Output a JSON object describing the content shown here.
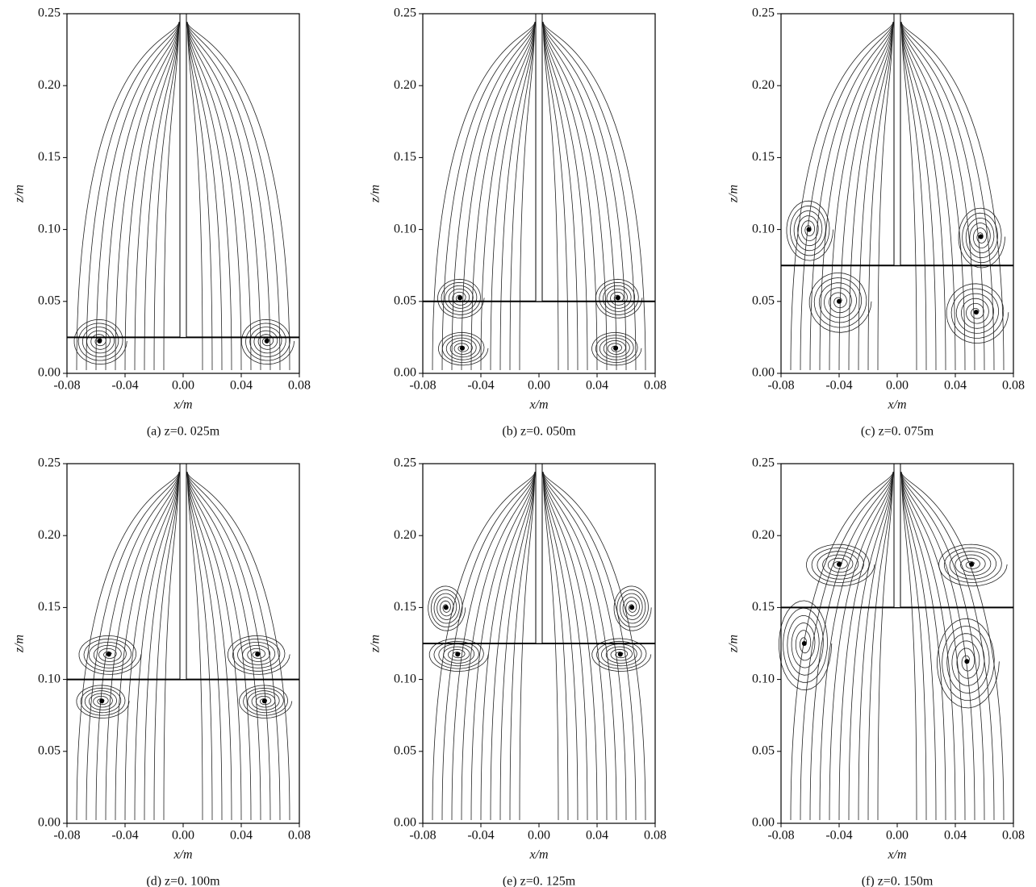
{
  "chart_data": [
    {
      "type": "streamline",
      "caption": "(a) z=0. 025m",
      "xlabel": "x/m",
      "ylabel": "z/m",
      "xlim": [
        -0.08,
        0.08
      ],
      "ylim": [
        0,
        0.25
      ],
      "xticks": [
        -0.08,
        -0.04,
        {
          "value": 0,
          "label": "0.00"
        },
        0.04,
        0.08
      ],
      "yticks": [
        {
          "value": 0,
          "label": "0.00"
        },
        0.05,
        {
          "value": 0.1,
          "label": "0.10"
        },
        0.15,
        {
          "value": 0.2,
          "label": "0.20"
        },
        0.25
      ]
    },
    {
      "type": "streamline",
      "caption": "(b) z=0. 050m",
      "xlabel": "x/m",
      "ylabel": "z/m",
      "xlim": [
        -0.08,
        0.08
      ],
      "ylim": [
        0,
        0.25
      ],
      "xticks": [
        -0.08,
        -0.04,
        {
          "value": 0,
          "label": "0.00"
        },
        0.04,
        0.08
      ],
      "yticks": [
        {
          "value": 0,
          "label": "0.00"
        },
        0.05,
        {
          "value": 0.1,
          "label": "0.10"
        },
        0.15,
        {
          "value": 0.2,
          "label": "0.20"
        },
        0.25
      ]
    },
    {
      "type": "streamline",
      "caption": "(c) z=0. 075m",
      "xlabel": "x/m",
      "ylabel": "z/m",
      "xlim": [
        -0.08,
        0.08
      ],
      "ylim": [
        0,
        0.25
      ],
      "xticks": [
        -0.08,
        -0.04,
        {
          "value": 0,
          "label": "0.00"
        },
        0.04,
        0.08
      ],
      "yticks": [
        {
          "value": 0,
          "label": "0.00"
        },
        0.05,
        {
          "value": 0.1,
          "label": "0.10"
        },
        0.15,
        {
          "value": 0.2,
          "label": "0.20"
        },
        0.25
      ]
    },
    {
      "type": "streamline",
      "caption": "(d) z=0. 100m",
      "xlabel": "x/m",
      "ylabel": "z/m",
      "xlim": [
        -0.08,
        0.08
      ],
      "ylim": [
        0,
        0.25
      ],
      "xticks": [
        -0.08,
        -0.04,
        {
          "value": 0,
          "label": "0.00"
        },
        0.04,
        0.08
      ],
      "yticks": [
        {
          "value": 0,
          "label": "0.00"
        },
        0.05,
        {
          "value": 0.1,
          "label": "0.10"
        },
        0.15,
        {
          "value": 0.2,
          "label": "0.20"
        },
        0.25
      ]
    },
    {
      "type": "streamline",
      "caption": "(e) z=0. 125m",
      "xlabel": "x/m",
      "ylabel": "z/m",
      "xlim": [
        -0.08,
        0.08
      ],
      "ylim": [
        0,
        0.25
      ],
      "xticks": [
        -0.08,
        -0.04,
        {
          "value": 0,
          "label": "0.00"
        },
        0.04,
        0.08
      ],
      "yticks": [
        {
          "value": 0,
          "label": "0.00"
        },
        0.05,
        {
          "value": 0.1,
          "label": "0.10"
        },
        0.15,
        {
          "value": 0.2,
          "label": "0.20"
        },
        0.25
      ]
    },
    {
      "type": "streamline",
      "caption": "(f) z=0. 150m",
      "xlabel": "x/m",
      "ylabel": "z/m",
      "xlim": [
        -0.08,
        0.08
      ],
      "ylim": [
        0,
        0.25
      ],
      "xticks": [
        -0.08,
        -0.04,
        {
          "value": 0,
          "label": "0.00"
        },
        0.04,
        0.08
      ],
      "yticks": [
        {
          "value": 0,
          "label": "0.00"
        },
        0.05,
        {
          "value": 0.1,
          "label": "0.10"
        },
        0.15,
        {
          "value": 0.2,
          "label": "0.20"
        },
        0.25
      ]
    }
  ]
}
